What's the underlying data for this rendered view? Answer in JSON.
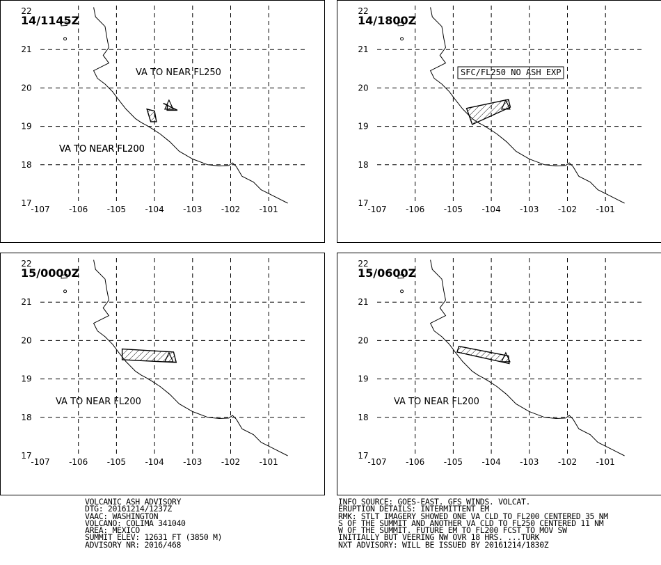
{
  "map": {
    "x_ticks": [
      "-107",
      "-106",
      "-105",
      "-104",
      "-103",
      "-102",
      "-101"
    ],
    "y_ticks": [
      "17",
      "18",
      "19",
      "20",
      "21",
      "22"
    ],
    "panels": [
      {
        "time": "14/1145Z",
        "labels": [
          "VA TO NEAR FL250",
          "VA TO NEAR FL200"
        ],
        "polygons": [
          [
            [
              -103.77,
              19.6
            ],
            [
              -103.4,
              19.42
            ],
            [
              -103.67,
              19.42
            ],
            [
              -103.66,
              19.56
            ]
          ],
          [
            [
              -104.2,
              19.45
            ],
            [
              -104.0,
              19.4
            ],
            [
              -103.95,
              19.12
            ],
            [
              -104.1,
              19.12
            ]
          ]
        ]
      },
      {
        "time": "14/1800Z",
        "labels": [
          "SFC/FL250 NO ASH EXP",
          "VA TO NEAR FL200"
        ],
        "polygons": [
          [
            [
              -104.65,
              19.47
            ],
            [
              -103.55,
              19.7
            ],
            [
              -103.5,
              19.5
            ],
            [
              -104.5,
              19.05
            ]
          ]
        ]
      },
      {
        "time": "15/0000Z",
        "labels": [
          "VA TO NEAR FL200"
        ],
        "polygons": [
          [
            [
              -104.85,
              19.78
            ],
            [
              -103.5,
              19.7
            ],
            [
              -103.43,
              19.43
            ],
            [
              -104.85,
              19.5
            ]
          ]
        ]
      },
      {
        "time": "15/0600Z",
        "labels": [
          "VA TO NEAR FL200"
        ],
        "polygons": [
          [
            [
              -104.85,
              19.85
            ],
            [
              -103.55,
              19.6
            ],
            [
              -103.53,
              19.4
            ],
            [
              -104.9,
              19.7
            ]
          ]
        ]
      }
    ],
    "volcano_position": [
      -103.62,
      19.52
    ],
    "volcano_name": "COLIMA"
  },
  "advisory_left": [
    "VOLCANIC ASH ADVISORY",
    "DTG: 20161214/1237Z",
    "VAAC: WASHINGTON",
    "VOLCANO: COLIMA 341040",
    "AREA: MEXICO",
    "SUMMIT ELEV: 12631 FT (3850 M)",
    "ADVISORY NR: 2016/468"
  ],
  "advisory_right": [
    "INFO SOURCE: GOES-EAST. GFS WINDS. VOLCAT.",
    "ERUPTION DETAILS: INTERMITTENT EM",
    "RMK: STLT IMAGERY SHOWED ONE VA CLD TO FL200 CENTERED 35 NM",
    "S OF THE SUMMIT AND ANOTHER VA CLD TO FL250 CENTERED 11 NM",
    "W OF THE SUMMIT. FUTURE EM TO FL200 FCST TO MOV SW",
    "INITIALLY BUT VEERING NW OVR 18 HRS. ...TURK",
    "NXT ADVISORY: WILL BE ISSUED BY 20161214/1830Z"
  ]
}
